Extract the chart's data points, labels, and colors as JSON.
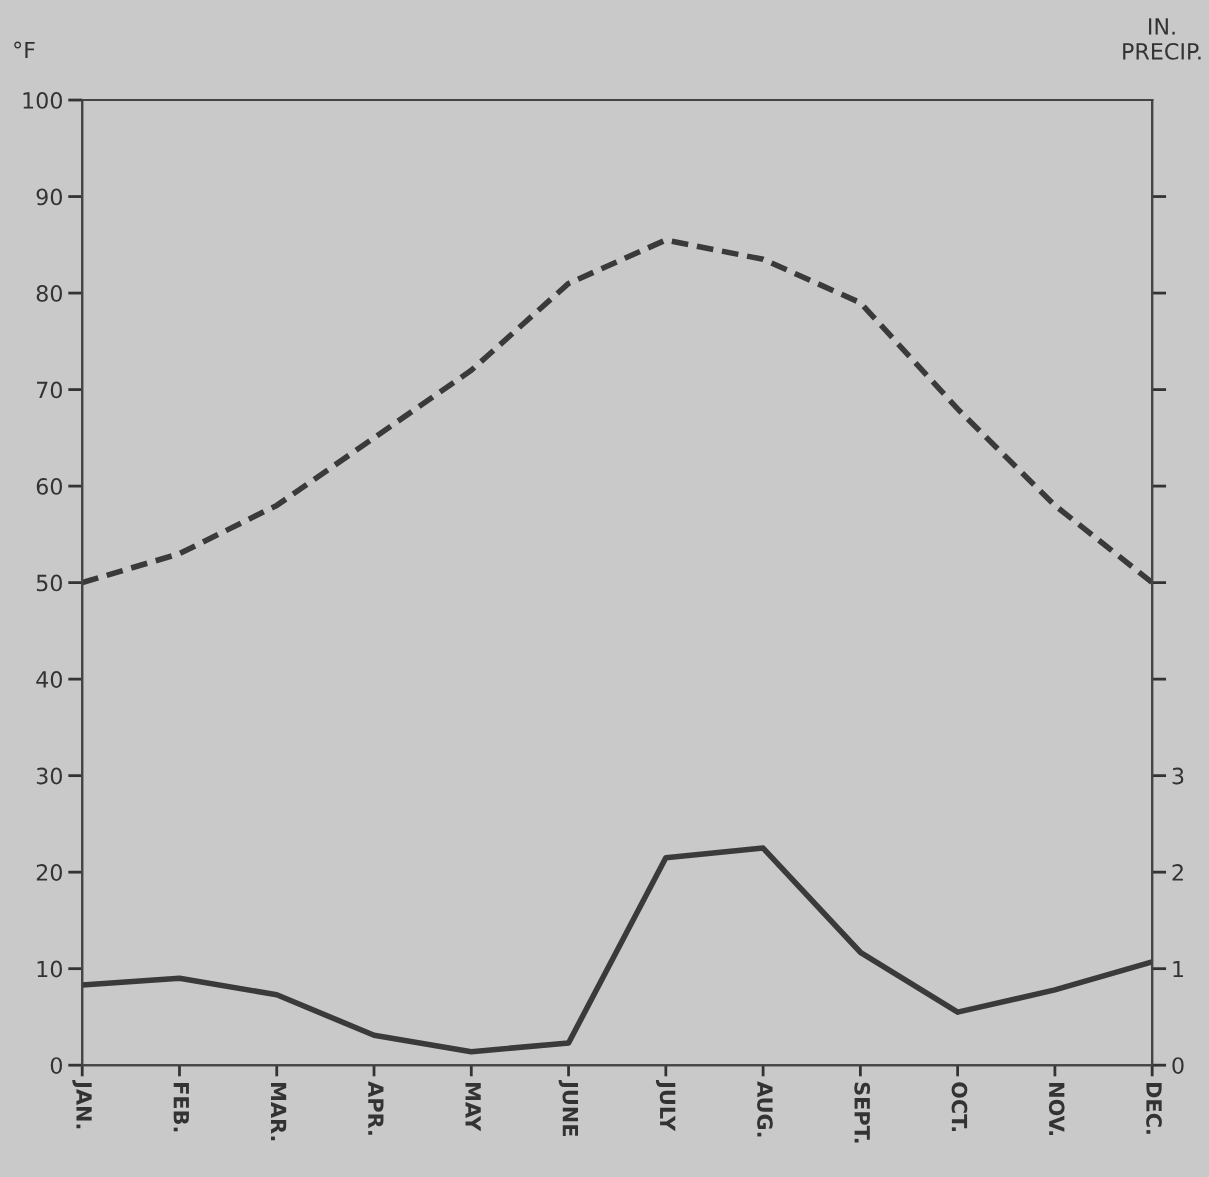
{
  "chart_data": {
    "type": "line",
    "ylabel": "°F",
    "y2label": "IN.\nPRECIP.",
    "categories": [
      "JAN.",
      "FEB.",
      "MAR.",
      "APR.",
      "MAY",
      "JUNE",
      "JULY",
      "AUG.",
      "SEPT.",
      "OCT.",
      "NOV.",
      "DEC."
    ],
    "series": [
      {
        "color": "#3a3a3a",
        "line_style": "dashed",
        "values": [
          50,
          53,
          58,
          65,
          72,
          81,
          85.5,
          83.5,
          79,
          68,
          58,
          50
        ]
      },
      {
        "color": "#3a3a3a",
        "line_style": "solid",
        "axis": "y2",
        "values": [
          0.83,
          0.9,
          0.73,
          0.31,
          0.14,
          0.23,
          2.15,
          2.25,
          1.17,
          0.55,
          0.78,
          1.07
        ]
      }
    ],
    "ylim": [
      0,
      100
    ],
    "yticks": [
      0,
      10,
      20,
      30,
      40,
      50,
      60,
      70,
      80,
      90,
      100
    ],
    "y2lim": [
      0,
      10
    ],
    "y2ticks": [
      0,
      1,
      2,
      3,
      {
        "value": 4,
        "label": null
      },
      {
        "value": 5,
        "label": null
      },
      {
        "value": 6,
        "label": null
      },
      {
        "value": 7,
        "label": null
      },
      {
        "value": 8,
        "label": null
      },
      {
        "value": 9,
        "label": null
      }
    ],
    "legend": false,
    "marker": "none"
  }
}
